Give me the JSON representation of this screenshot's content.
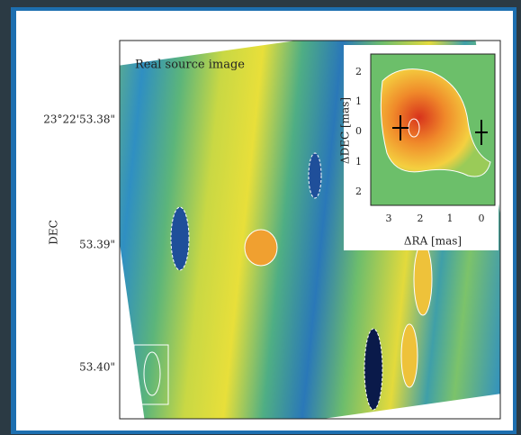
{
  "figure": {
    "panel_label": "Real source image",
    "y_axis_label": "DEC",
    "y_ticks": [
      "23°22'53.38\"",
      "53.39\"",
      "53.40\""
    ],
    "inset": {
      "x_label": "ΔRA [mas]",
      "y_label": "ΔDEC [mas]",
      "x_ticks": [
        "3",
        "2",
        "1",
        "0"
      ],
      "y_ticks": [
        "2",
        "1",
        "0",
        "1",
        "2"
      ]
    }
  }
}
